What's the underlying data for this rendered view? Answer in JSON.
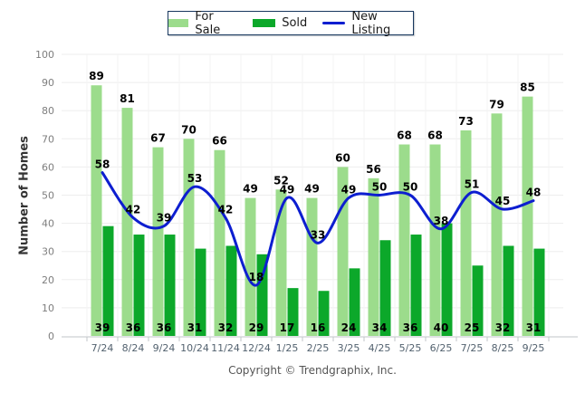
{
  "legend": {
    "items": [
      {
        "label": "For Sale",
        "swatch": "bar",
        "color": "#9CDC8C"
      },
      {
        "label": "Sold",
        "swatch": "bar",
        "color": "#0CA82A"
      },
      {
        "label": "New Listing",
        "swatch": "line",
        "color": "#0D1ED0"
      }
    ],
    "border_color": "#17375E"
  },
  "chart_data": {
    "type": "bar",
    "categories": [
      "7/24",
      "8/24",
      "9/24",
      "10/24",
      "11/24",
      "12/24",
      "1/25",
      "2/25",
      "3/25",
      "4/25",
      "5/25",
      "6/25",
      "7/25",
      "8/25",
      "9/25"
    ],
    "series": [
      {
        "name": "For Sale",
        "type": "bar",
        "color": "#9CDC8C",
        "values": [
          89,
          81,
          67,
          70,
          66,
          49,
          52,
          49,
          60,
          56,
          68,
          68,
          73,
          79,
          85
        ]
      },
      {
        "name": "Sold",
        "type": "bar",
        "color": "#0CA82A",
        "values": [
          39,
          36,
          36,
          31,
          32,
          29,
          17,
          16,
          24,
          34,
          36,
          40,
          25,
          32,
          31
        ]
      },
      {
        "name": "New Listing",
        "type": "line",
        "color": "#0D1ED0",
        "values": [
          58,
          42,
          39,
          53,
          42,
          18,
          49,
          33,
          49,
          50,
          50,
          38,
          51,
          45,
          48
        ]
      }
    ],
    "title": "",
    "xlabel": "",
    "ylabel": "Number of Homes",
    "ylim": [
      0,
      100
    ],
    "ytick_step": 10,
    "grid": true,
    "legend_position": "top",
    "value_labels": true
  },
  "footer": {
    "copyright": "Copyright © Trendgraphix, Inc."
  },
  "colors": {
    "background": "#FFFFFF",
    "h_grid": "#EDEDED",
    "v_grid": "#F3F3F3",
    "axis": "#C2C6CA",
    "ytick_text": "#7E7E7E",
    "xtick_text": "#53626F",
    "value_label": "#000000"
  }
}
